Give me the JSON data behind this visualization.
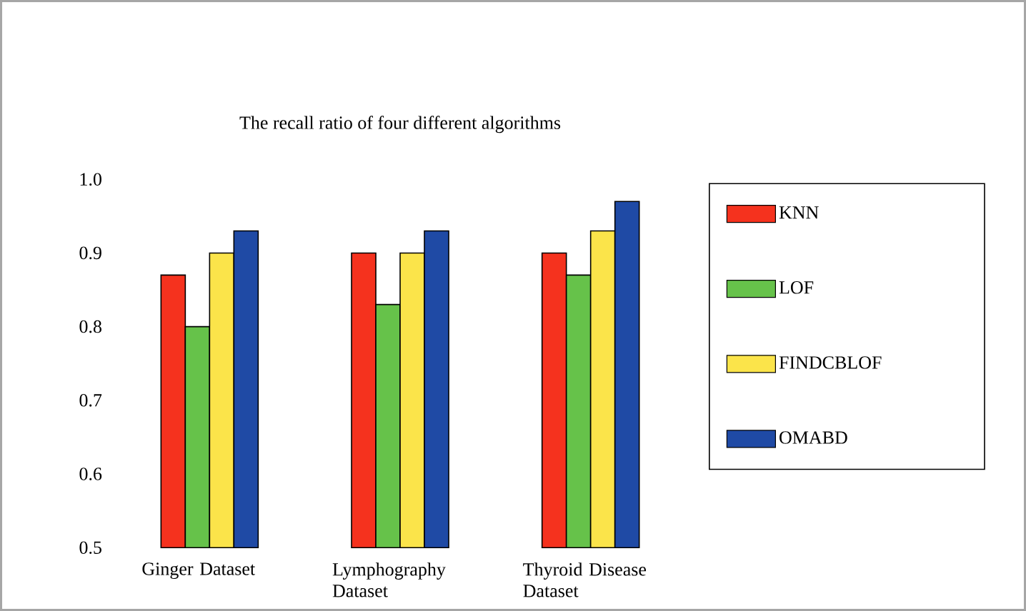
{
  "chart_data": {
    "type": "bar",
    "title": "The recall ratio of four different algorithms",
    "categories": [
      "Ginger Dataset",
      "Lymphography Dataset",
      "Thyroid Disease Dataset"
    ],
    "series": [
      {
        "name": "KNN",
        "color": "#f5321e",
        "values": [
          0.87,
          0.9,
          0.9
        ]
      },
      {
        "name": "LOF",
        "color": "#66c24a",
        "values": [
          0.8,
          0.83,
          0.87
        ]
      },
      {
        "name": "FINDCBLOF",
        "color": "#fbe44a",
        "values": [
          0.9,
          0.9,
          0.93
        ]
      },
      {
        "name": "OMABD",
        "color": "#1f4aa5",
        "values": [
          0.93,
          0.93,
          0.97
        ]
      }
    ],
    "ylim": [
      0.5,
      1.0
    ],
    "yticks": [
      {
        "value": 0.5,
        "label": "0.5"
      },
      {
        "value": 0.6,
        "label": "0.6"
      },
      {
        "value": 0.7,
        "label": "0.7"
      },
      {
        "value": 0.8,
        "label": "0.8"
      },
      {
        "value": 0.9,
        "label": "0.9"
      },
      {
        "value": 1.0,
        "label": "1.0"
      }
    ],
    "legend": "right"
  }
}
